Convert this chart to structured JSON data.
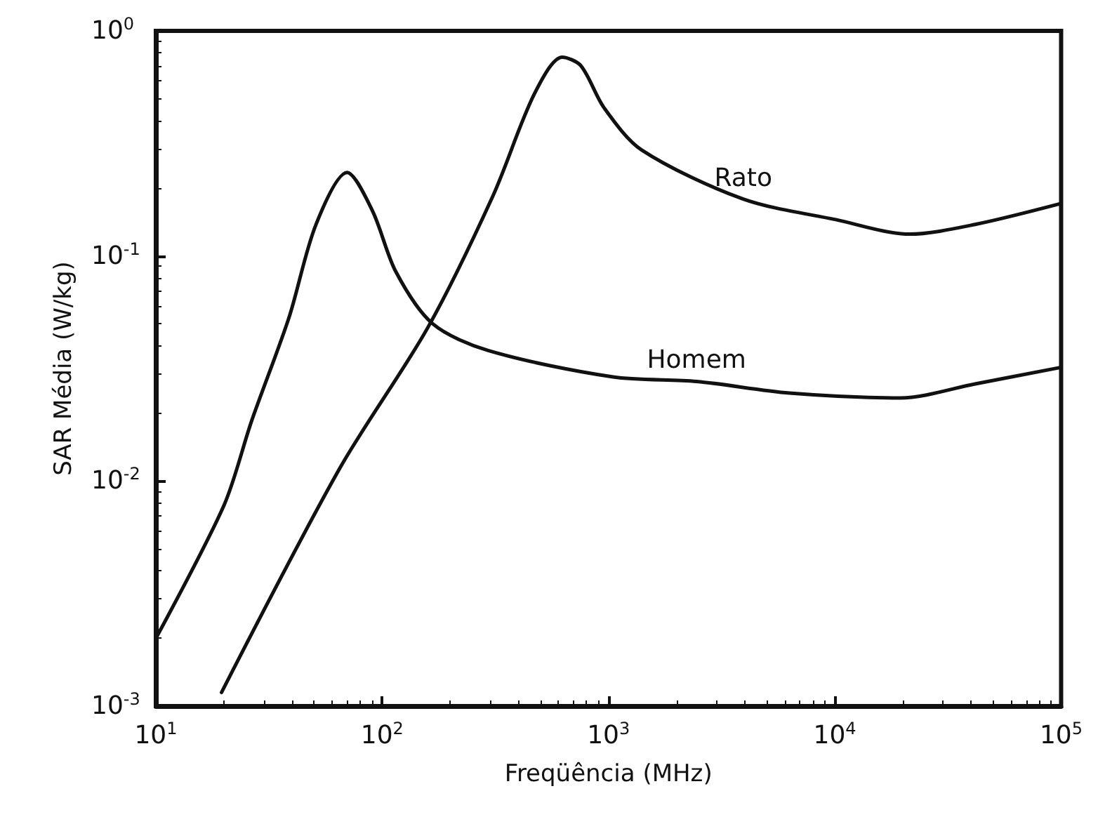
{
  "chart_data": {
    "type": "line",
    "xlabel": "Freqüência (MHz)",
    "ylabel": "SAR Média (W/kg)",
    "log": "xy",
    "grid": false,
    "marker": "none",
    "line_style": "solid",
    "xlim": [
      10,
      100000
    ],
    "ylim": [
      0.001,
      1
    ],
    "xticks": [
      {
        "value": 10,
        "label": "10$^{1}$"
      },
      {
        "value": 100,
        "label": "10$^{2}$"
      },
      {
        "value": 1000,
        "label": "10$^{3}$"
      },
      {
        "value": 10000,
        "label": "10$^{4}$"
      },
      {
        "value": 100000,
        "label": "10$^{5}$"
      }
    ],
    "yticks": [
      {
        "value": 0.001,
        "label": "10$^{-3}$"
      },
      {
        "value": 0.01,
        "label": "10$^{-2}$"
      },
      {
        "value": 0.1,
        "label": "10$^{-1}$"
      },
      {
        "value": 1,
        "label": "10$^{0}$"
      }
    ],
    "series": [
      {
        "name": "Homem",
        "color": "#111111",
        "x": [
          10,
          20,
          26.5,
          38.7,
          51,
          70,
          90.5,
          115,
          167,
          294,
          1047,
          2450,
          6300,
          19500,
          41700,
          100000
        ],
        "values": [
          0.002,
          0.0078,
          0.0185,
          0.053,
          0.138,
          0.235,
          0.159,
          0.085,
          0.05,
          0.038,
          0.029,
          0.0277,
          0.0246,
          0.0234,
          0.027,
          0.032
        ]
      },
      {
        "name": "Rato",
        "color": "#111111",
        "x": [
          19.5,
          65,
          159,
          308,
          471,
          625,
          755,
          955,
          1400,
          3940,
          10100,
          21400,
          41700,
          100000
        ],
        "values": [
          0.00115,
          0.0114,
          0.048,
          0.184,
          0.526,
          0.764,
          0.7,
          0.456,
          0.296,
          0.179,
          0.145,
          0.125,
          0.138,
          0.171
        ]
      }
    ]
  }
}
